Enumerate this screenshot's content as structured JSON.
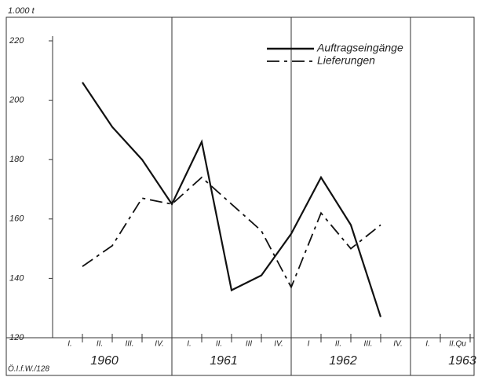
{
  "chart_data": {
    "type": "line",
    "y_unit": "1.000 t",
    "source": "Ö.I.f.W./128",
    "categories": [
      "I.",
      "II.",
      "III.",
      "IV.",
      "I.",
      "II.",
      "III",
      "IV.",
      "I",
      "II.",
      "III.",
      "IV.",
      "I.",
      "II.Qu"
    ],
    "years": [
      "1960",
      "1961",
      "1962",
      "1963"
    ],
    "series": [
      {
        "name": "Auftragseingänge",
        "color": "#111",
        "dash": "none",
        "values": [
          206,
          191,
          180,
          165,
          186,
          136,
          141,
          155,
          174,
          158,
          127,
          null,
          null,
          null
        ]
      },
      {
        "name": "Lieferungen",
        "color": "#111",
        "dash": "16 6 4 6",
        "values": [
          144,
          151,
          167,
          165,
          174,
          165,
          156,
          137,
          162,
          150,
          158,
          null,
          null,
          null
        ]
      }
    ],
    "ylim": [
      120,
      220
    ],
    "yticks": [
      120,
      140,
      160,
      180,
      200,
      220
    ]
  }
}
